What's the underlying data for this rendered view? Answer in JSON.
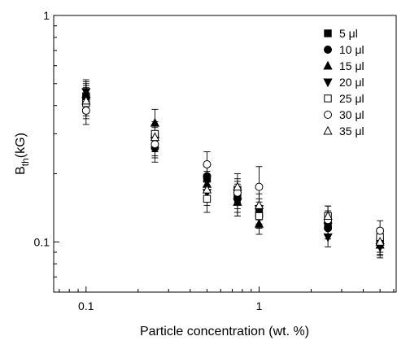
{
  "chart_data": {
    "type": "scatter",
    "xlabel": "Particle concentration (wt. %)",
    "ylabel": {
      "main": "B",
      "sub": "th",
      "unit": "(kG)"
    },
    "x_scale": "log",
    "y_scale": "log",
    "xlim": [
      0.065,
      6.2
    ],
    "ylim": [
      0.06,
      1
    ],
    "x_ticks": [
      {
        "value": 0.1,
        "label": "0.1"
      },
      {
        "value": 1,
        "label": "1"
      }
    ],
    "y_ticks": [
      {
        "value": 0.1,
        "label": "0.1"
      },
      {
        "value": 1,
        "label": "1"
      }
    ],
    "grid": false,
    "legend_position": "top-right",
    "series": [
      {
        "name": "5 μl",
        "marker": "square-filled",
        "points": [
          {
            "x": 0.1,
            "y": 0.44,
            "err": 0.06
          },
          {
            "x": 0.25,
            "y": 0.29,
            "err": 0.04
          },
          {
            "x": 0.5,
            "y": 0.19,
            "err": 0.025
          },
          {
            "x": 0.75,
            "y": 0.16,
            "err": 0.02
          },
          {
            "x": 1.0,
            "y": 0.135,
            "err": 0.015
          },
          {
            "x": 2.5,
            "y": 0.12,
            "err": 0.012
          },
          {
            "x": 5.0,
            "y": 0.1,
            "err": 0.01
          }
        ]
      },
      {
        "name": "10 μl",
        "marker": "circle-filled",
        "points": [
          {
            "x": 0.1,
            "y": 0.43,
            "err": 0.06
          },
          {
            "x": 0.25,
            "y": 0.26,
            "err": 0.035
          },
          {
            "x": 0.5,
            "y": 0.195,
            "err": 0.025
          },
          {
            "x": 0.75,
            "y": 0.155,
            "err": 0.02
          },
          {
            "x": 1.0,
            "y": 0.13,
            "err": 0.015
          },
          {
            "x": 2.5,
            "y": 0.115,
            "err": 0.012
          },
          {
            "x": 5.0,
            "y": 0.098,
            "err": 0.01
          }
        ]
      },
      {
        "name": "15 μl",
        "marker": "triangle-up-filled",
        "points": [
          {
            "x": 0.1,
            "y": 0.45,
            "err": 0.06
          },
          {
            "x": 0.25,
            "y": 0.335,
            "err": 0.05
          },
          {
            "x": 0.5,
            "y": 0.18,
            "err": 0.025
          },
          {
            "x": 0.75,
            "y": 0.15,
            "err": 0.02
          },
          {
            "x": 1.0,
            "y": 0.12,
            "err": 0.012
          },
          {
            "x": 2.5,
            "y": 0.125,
            "err": 0.012
          },
          {
            "x": 5.0,
            "y": 0.097,
            "err": 0.01
          }
        ]
      },
      {
        "name": "20 μl",
        "marker": "triangle-down-filled",
        "points": [
          {
            "x": 0.1,
            "y": 0.46,
            "err": 0.06
          },
          {
            "x": 0.25,
            "y": 0.28,
            "err": 0.04
          },
          {
            "x": 0.5,
            "y": 0.165,
            "err": 0.02
          },
          {
            "x": 0.75,
            "y": 0.15,
            "err": 0.02
          },
          {
            "x": 1.0,
            "y": 0.14,
            "err": 0.015
          },
          {
            "x": 2.5,
            "y": 0.105,
            "err": 0.01
          },
          {
            "x": 5.0,
            "y": 0.095,
            "err": 0.01
          }
        ]
      },
      {
        "name": "25 μl",
        "marker": "square-open",
        "points": [
          {
            "x": 0.1,
            "y": 0.41,
            "err": 0.06
          },
          {
            "x": 0.25,
            "y": 0.3,
            "err": 0.04
          },
          {
            "x": 0.5,
            "y": 0.155,
            "err": 0.02
          },
          {
            "x": 0.75,
            "y": 0.17,
            "err": 0.02
          },
          {
            "x": 1.0,
            "y": 0.13,
            "err": 0.015
          },
          {
            "x": 2.5,
            "y": 0.13,
            "err": 0.014
          },
          {
            "x": 5.0,
            "y": 0.105,
            "err": 0.01
          }
        ]
      },
      {
        "name": "30 μl",
        "marker": "circle-open",
        "points": [
          {
            "x": 0.1,
            "y": 0.38,
            "err": 0.05
          },
          {
            "x": 0.25,
            "y": 0.27,
            "err": 0.035
          },
          {
            "x": 0.5,
            "y": 0.22,
            "err": 0.03
          },
          {
            "x": 0.75,
            "y": 0.165,
            "err": 0.02
          },
          {
            "x": 1.0,
            "y": 0.175,
            "err": 0.04
          },
          {
            "x": 2.5,
            "y": 0.125,
            "err": 0.012
          },
          {
            "x": 5.0,
            "y": 0.112,
            "err": 0.012
          }
        ]
      },
      {
        "name": "35 μl",
        "marker": "triangle-up-open",
        "points": [
          {
            "x": 0.1,
            "y": 0.42,
            "err": 0.06
          },
          {
            "x": 0.25,
            "y": 0.29,
            "err": 0.04
          },
          {
            "x": 0.5,
            "y": 0.17,
            "err": 0.02
          },
          {
            "x": 0.75,
            "y": 0.175,
            "err": 0.025
          },
          {
            "x": 1.0,
            "y": 0.145,
            "err": 0.018
          },
          {
            "x": 2.5,
            "y": 0.13,
            "err": 0.014
          },
          {
            "x": 5.0,
            "y": 0.1,
            "err": 0.01
          }
        ]
      }
    ]
  }
}
